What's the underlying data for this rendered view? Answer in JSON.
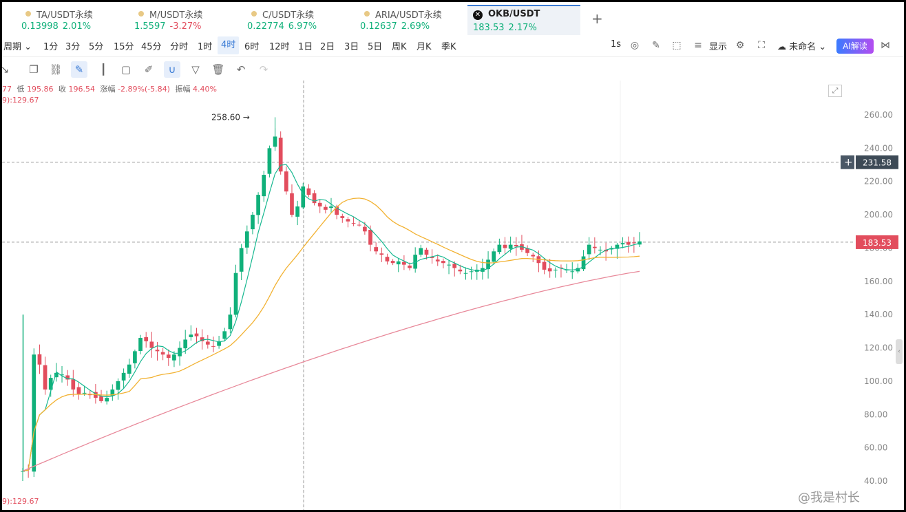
{
  "tabs": [
    {
      "symbol": "TA/USDT永续",
      "price": "0.13998",
      "change": "2.01%",
      "negative": false
    },
    {
      "symbol": "M/USDT永续",
      "price": "1.5597",
      "change": "-3.27%",
      "negative": true
    },
    {
      "symbol": "C/USDT永续",
      "price": "0.22774",
      "change": "6.97%",
      "negative": false
    },
    {
      "symbol": "ARIA/USDT永续",
      "price": "0.12637",
      "change": "2.69%",
      "negative": false
    },
    {
      "symbol": "OKB/USDT",
      "price": "183.53",
      "change": "2.17%",
      "negative": false,
      "active": true
    }
  ],
  "add_tab": "+",
  "intervals": [
    "周期",
    "1分",
    "3分",
    "5分",
    "15分",
    "45分",
    "分时",
    "1时",
    "4时",
    "6时",
    "12时",
    "1日",
    "2日",
    "3日",
    "5日",
    "周K",
    "月K",
    "季K"
  ],
  "active_interval": "4时",
  "toolbar_right": {
    "refresh": "1s",
    "display": "显示",
    "layout_name": "未命名",
    "ai_button": "AI解读"
  },
  "ohlc": {
    "open_fragment": "77",
    "low_label": "低",
    "low": "195.86",
    "close_label": "收",
    "close": "196.54",
    "change_label": "涨幅",
    "change": "-2.89%(-5.84)",
    "amplitude_label": "振幅",
    "amplitude": "4.40%"
  },
  "ma_top": "9):129.67",
  "ma_bottom": "9):129.67",
  "watermark": "@我是村长",
  "chart_data": {
    "type": "candlestick",
    "y_ticks": [
      "260.00",
      "240.00",
      "220.00",
      "200.00",
      "180.00",
      "160.00",
      "140.00",
      "120.00",
      "100.00",
      "80.00",
      "60.00",
      "40.00"
    ],
    "ylim": [
      40,
      260
    ],
    "crosshair_price": "231.58",
    "last_price": "183.53",
    "peak_label": "258.60",
    "colors": {
      "up": "#10b07a",
      "down": "#e24d5d",
      "ma_short": "#17b890",
      "ma_mid": "#f2b233",
      "ma_long": "#e8899a"
    },
    "closes": [
      46,
      47,
      116,
      110,
      95,
      102,
      105,
      104,
      101,
      95,
      92,
      93,
      92,
      90,
      88,
      90,
      95,
      100,
      105,
      110,
      118,
      126,
      124,
      120,
      118,
      116,
      114,
      116,
      120,
      125,
      128,
      127,
      124,
      122,
      121,
      124,
      130,
      140,
      165,
      180,
      190,
      200,
      212,
      224,
      240,
      247,
      226,
      214,
      200,
      205,
      217,
      212,
      207,
      205,
      203,
      205,
      200,
      198,
      196,
      195,
      194,
      190,
      182,
      178,
      176,
      172,
      171,
      172,
      170,
      168,
      176,
      180,
      176,
      174,
      172,
      171,
      170,
      168,
      166,
      165,
      166,
      167,
      168,
      173,
      178,
      182,
      180,
      182,
      181,
      179,
      177,
      175,
      171,
      167,
      166,
      167,
      168,
      167,
      166,
      168,
      175,
      182,
      180,
      179,
      178,
      180,
      182,
      183,
      182,
      183,
      184
    ]
  }
}
